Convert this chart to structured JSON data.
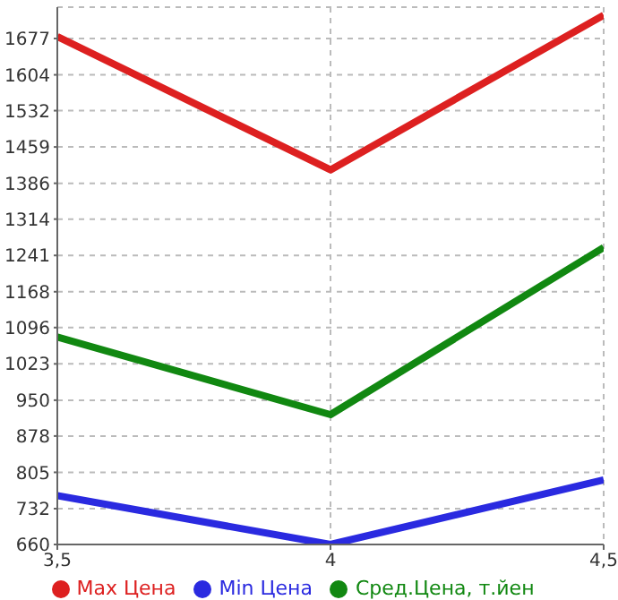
{
  "chart_data": {
    "type": "line",
    "x": [
      3.5,
      4,
      4.5
    ],
    "xlim": [
      3.5,
      4.5
    ],
    "xticks": [
      {
        "value": 3.5,
        "label": "3,5"
      },
      4,
      {
        "value": 4.5,
        "label": "4,5"
      }
    ],
    "ylim": [
      660,
      1740
    ],
    "yticks": [
      660,
      732,
      805,
      878,
      950,
      1023,
      1096,
      1168,
      1241,
      1314,
      1386,
      1459,
      1532,
      1604,
      1677
    ],
    "series": [
      {
        "name": "Max Цена",
        "color": "#dd2020",
        "values": [
          1681,
          1413,
          1724
        ]
      },
      {
        "name": "Min Цена",
        "color": "#2a2ae0",
        "values": [
          758,
          660,
          790
        ]
      },
      {
        "name": "Сред.Цена, т.йен",
        "color": "#118811",
        "values": [
          1077,
          921,
          1257
        ]
      }
    ],
    "grid": true,
    "legend": "bottom",
    "marker": "none",
    "line_style": "solid"
  }
}
